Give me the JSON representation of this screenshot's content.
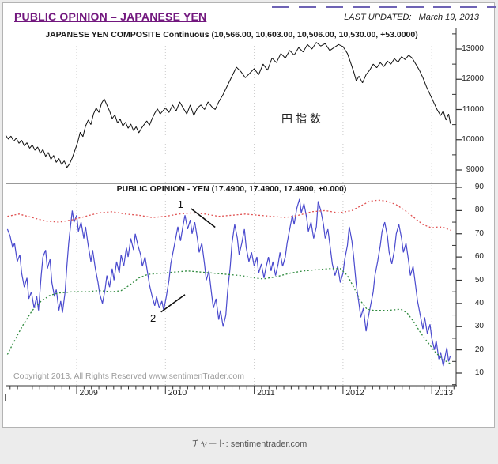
{
  "page": {
    "background": "#ececec",
    "caption": "チャート: sentimentrader.com"
  },
  "header": {
    "title": "PUBLIC OPINION – JAPANESE YEN",
    "title_color": "#72177e",
    "last_updated_label": "LAST UPDATED:",
    "last_updated_value": "March 19, 2013"
  },
  "footer": {
    "copyright": "Copyright 2013, All Rights Reserved  www.sentimenTrader.com"
  },
  "chart_data": [
    {
      "type": "line",
      "title": "JAPANESE YEN COMPOSITE Continuous (10,566.00, 10,603.00, 10,506.00, 10,530.00, +53.0000)",
      "annotation_label": "円指数",
      "xlabel": "",
      "ylabel": "",
      "ylim": [
        8800,
        13400
      ],
      "xlim": [
        2008.2,
        2013.25
      ],
      "yticks": [
        13000,
        12000,
        11000,
        10000,
        9000
      ],
      "yticks_minor": [
        13500,
        12500,
        11500,
        10500,
        9500
      ],
      "grid": "vertical-dotted-years",
      "legend": "none",
      "series": [
        {
          "name": "yen-composite-price",
          "color": "#111111",
          "style": "solid",
          "x": [
            2008.2,
            2008.23,
            2008.26,
            2008.29,
            2008.32,
            2008.35,
            2008.38,
            2008.41,
            2008.44,
            2008.47,
            2008.5,
            2008.53,
            2008.56,
            2008.59,
            2008.62,
            2008.65,
            2008.68,
            2008.71,
            2008.74,
            2008.77,
            2008.8,
            2008.83,
            2008.86,
            2008.89,
            2008.92,
            2008.95,
            2008.98,
            2009.01,
            2009.04,
            2009.07,
            2009.1,
            2009.13,
            2009.16,
            2009.19,
            2009.22,
            2009.25,
            2009.28,
            2009.31,
            2009.34,
            2009.37,
            2009.4,
            2009.43,
            2009.46,
            2009.49,
            2009.52,
            2009.55,
            2009.58,
            2009.61,
            2009.64,
            2009.67,
            2009.7,
            2009.73,
            2009.76,
            2009.79,
            2009.82,
            2009.85,
            2009.88,
            2009.91,
            2009.94,
            2009.97,
            2010.0,
            2010.04,
            2010.08,
            2010.12,
            2010.16,
            2010.2,
            2010.24,
            2010.28,
            2010.32,
            2010.36,
            2010.4,
            2010.44,
            2010.48,
            2010.52,
            2010.56,
            2010.6,
            2010.65,
            2010.7,
            2010.75,
            2010.8,
            2010.85,
            2010.9,
            2010.95,
            2011.0,
            2011.05,
            2011.1,
            2011.15,
            2011.2,
            2011.25,
            2011.3,
            2011.35,
            2011.4,
            2011.45,
            2011.5,
            2011.55,
            2011.6,
            2011.65,
            2011.7,
            2011.75,
            2011.8,
            2011.85,
            2011.9,
            2011.95,
            2012.0,
            2012.05,
            2012.08,
            2012.12,
            2012.15,
            2012.18,
            2012.22,
            2012.26,
            2012.3,
            2012.34,
            2012.38,
            2012.42,
            2012.46,
            2012.5,
            2012.54,
            2012.58,
            2012.62,
            2012.66,
            2012.7,
            2012.74,
            2012.78,
            2012.82,
            2012.86,
            2012.9,
            2012.94,
            2012.98,
            2013.02,
            2013.06,
            2013.1,
            2013.13,
            2013.16,
            2013.19,
            2013.21
          ],
          "y": [
            10150,
            10020,
            10120,
            9950,
            10050,
            9880,
            9980,
            9800,
            9900,
            9720,
            9830,
            9650,
            9760,
            9550,
            9680,
            9450,
            9580,
            9350,
            9480,
            9250,
            9380,
            9180,
            9300,
            9080,
            9200,
            9400,
            9650,
            9900,
            10250,
            10100,
            10450,
            10650,
            10500,
            10850,
            11050,
            10900,
            11200,
            11350,
            11150,
            10950,
            10700,
            10820,
            10550,
            10680,
            10450,
            10580,
            10380,
            10520,
            10300,
            10430,
            10230,
            10380,
            10500,
            10620,
            10480,
            10700,
            10880,
            11020,
            10850,
            10950,
            11050,
            10900,
            11150,
            10950,
            11250,
            11050,
            10850,
            11150,
            10800,
            11050,
            11150,
            11000,
            11250,
            11100,
            11000,
            11250,
            11500,
            11800,
            12100,
            12400,
            12250,
            12050,
            12200,
            12350,
            12150,
            12500,
            12300,
            12700,
            12550,
            12850,
            12700,
            12950,
            12800,
            13050,
            12900,
            13150,
            13000,
            13220,
            13100,
            13180,
            12950,
            13050,
            13150,
            13080,
            12850,
            12600,
            12250,
            11950,
            12100,
            11880,
            12150,
            12300,
            12500,
            12380,
            12550,
            12420,
            12600,
            12500,
            12680,
            12560,
            12750,
            12650,
            12800,
            12700,
            12500,
            12300,
            12050,
            11750,
            11500,
            11250,
            11000,
            10800,
            10950,
            10650,
            10850,
            10530
          ]
        }
      ]
    },
    {
      "type": "line",
      "title": "PUBLIC OPINION - YEN (17.4900, 17.4900, 17.4900, +0.000)",
      "xlabel": "",
      "ylabel": "",
      "ylim": [
        5,
        92
      ],
      "xlim": [
        2008.2,
        2013.25
      ],
      "yticks": [
        90,
        80,
        70,
        60,
        50,
        40,
        30,
        20,
        10
      ],
      "yticks_minor": [
        85,
        75,
        65,
        55,
        45,
        35,
        25,
        15,
        5
      ],
      "grid": "vertical-dotted-years",
      "legend": "none",
      "xticks": {
        "years": [
          2009,
          2010,
          2011,
          2012,
          2013
        ],
        "labels": [
          "2009",
          "2010",
          "2011",
          "2012",
          "2013"
        ]
      },
      "series": [
        {
          "name": "public-opinion-yen",
          "color": "#4a4ace",
          "style": "solid",
          "x": [
            2008.22,
            2008.25,
            2008.28,
            2008.3,
            2008.33,
            2008.36,
            2008.38,
            2008.41,
            2008.44,
            2008.46,
            2008.49,
            2008.52,
            2008.55,
            2008.57,
            2008.6,
            2008.62,
            2008.65,
            2008.67,
            2008.7,
            2008.72,
            2008.75,
            2008.77,
            2008.8,
            2008.82,
            2008.84,
            2008.87,
            2008.89,
            2008.91,
            2008.93,
            2008.95,
            2008.97,
            2009.0,
            2009.02,
            2009.05,
            2009.08,
            2009.1,
            2009.13,
            2009.16,
            2009.18,
            2009.21,
            2009.24,
            2009.26,
            2009.29,
            2009.32,
            2009.34,
            2009.37,
            2009.4,
            2009.42,
            2009.45,
            2009.48,
            2009.5,
            2009.53,
            2009.56,
            2009.58,
            2009.61,
            2009.64,
            2009.66,
            2009.69,
            2009.72,
            2009.74,
            2009.77,
            2009.8,
            2009.82,
            2009.85,
            2009.88,
            2009.9,
            2009.93,
            2009.96,
            2009.98,
            2010.01,
            2010.04,
            2010.06,
            2010.09,
            2010.12,
            2010.14,
            2010.17,
            2010.2,
            2010.22,
            2010.25,
            2010.28,
            2010.3,
            2010.33,
            2010.36,
            2010.38,
            2010.41,
            2010.44,
            2010.46,
            2010.49,
            2010.52,
            2010.54,
            2010.57,
            2010.6,
            2010.62,
            2010.65,
            2010.68,
            2010.7,
            2010.73,
            2010.75,
            2010.78,
            2010.81,
            2010.83,
            2010.86,
            2010.89,
            2010.91,
            2010.94,
            2010.97,
            2011.0,
            2011.03,
            2011.05,
            2011.08,
            2011.11,
            2011.13,
            2011.16,
            2011.19,
            2011.21,
            2011.24,
            2011.27,
            2011.29,
            2011.32,
            2011.35,
            2011.37,
            2011.4,
            2011.43,
            2011.45,
            2011.48,
            2011.51,
            2011.53,
            2011.56,
            2011.59,
            2011.61,
            2011.64,
            2011.67,
            2011.7,
            2011.72,
            2011.75,
            2011.78,
            2011.8,
            2011.83,
            2011.86,
            2011.88,
            2011.91,
            2011.94,
            2011.97,
            2012.0,
            2012.02,
            2012.05,
            2012.07,
            2012.1,
            2012.12,
            2012.15,
            2012.18,
            2012.2,
            2012.23,
            2012.26,
            2012.28,
            2012.31,
            2012.34,
            2012.36,
            2012.39,
            2012.42,
            2012.44,
            2012.47,
            2012.5,
            2012.52,
            2012.55,
            2012.58,
            2012.6,
            2012.63,
            2012.66,
            2012.68,
            2012.71,
            2012.74,
            2012.76,
            2012.79,
            2012.82,
            2012.84,
            2012.87,
            2012.9,
            2012.92,
            2012.95,
            2012.98,
            2013.0,
            2013.03,
            2013.05,
            2013.08,
            2013.1,
            2013.13,
            2013.15,
            2013.17,
            2013.19,
            2013.21
          ],
          "y": [
            72,
            69,
            64,
            66,
            58,
            61,
            53,
            47,
            51,
            42,
            45,
            38,
            43,
            37,
            52,
            60,
            63,
            55,
            59,
            49,
            43,
            46,
            37,
            41,
            36,
            45,
            56,
            66,
            73,
            80,
            75,
            78,
            71,
            75,
            68,
            73,
            65,
            58,
            63,
            55,
            49,
            44,
            40,
            46,
            52,
            47,
            55,
            50,
            58,
            53,
            61,
            56,
            64,
            60,
            68,
            63,
            70,
            65,
            61,
            56,
            60,
            53,
            48,
            43,
            39,
            43,
            38,
            41,
            37,
            43,
            50,
            57,
            63,
            69,
            73,
            67,
            74,
            78,
            72,
            76,
            70,
            75,
            68,
            62,
            66,
            57,
            50,
            54,
            44,
            38,
            42,
            33,
            37,
            30,
            35,
            45,
            56,
            66,
            74,
            68,
            61,
            66,
            72,
            64,
            58,
            62,
            56,
            60,
            53,
            57,
            51,
            55,
            60,
            54,
            58,
            52,
            57,
            62,
            56,
            60,
            66,
            72,
            78,
            74,
            81,
            85,
            79,
            83,
            77,
            71,
            75,
            68,
            73,
            84,
            80,
            74,
            68,
            72,
            63,
            57,
            52,
            56,
            49,
            53,
            59,
            65,
            73,
            67,
            60,
            48,
            40,
            34,
            38,
            28,
            33,
            39,
            45,
            52,
            58,
            65,
            71,
            75,
            69,
            62,
            57,
            63,
            70,
            74,
            68,
            62,
            66,
            58,
            52,
            56,
            47,
            41,
            35,
            29,
            34,
            27,
            31,
            25,
            20,
            24,
            16,
            19,
            13,
            17,
            21,
            15,
            17.5
          ]
        },
        {
          "name": "upper-band-excessive-optimism",
          "color": "#e05252",
          "style": "dotted",
          "x": [
            2008.22,
            2008.35,
            2008.5,
            2008.65,
            2008.8,
            2008.95,
            2009.1,
            2009.25,
            2009.4,
            2009.55,
            2009.7,
            2009.85,
            2010.0,
            2010.15,
            2010.3,
            2010.45,
            2010.6,
            2010.75,
            2010.9,
            2011.05,
            2011.2,
            2011.35,
            2011.5,
            2011.65,
            2011.8,
            2011.95,
            2012.1,
            2012.2,
            2012.3,
            2012.4,
            2012.5,
            2012.6,
            2012.7,
            2012.8,
            2012.9,
            2013.0,
            2013.08,
            2013.15,
            2013.21
          ],
          "y": [
            77.5,
            78.5,
            77,
            75.5,
            75,
            76,
            77.5,
            79,
            79.5,
            78.5,
            78,
            77,
            77.5,
            78.5,
            79,
            78.5,
            77.5,
            78,
            78.5,
            78,
            77.5,
            77,
            78,
            79.5,
            80,
            79,
            80,
            82,
            84,
            84.5,
            84,
            82.5,
            80,
            77,
            74,
            72.5,
            73,
            72.5,
            71.5
          ]
        },
        {
          "name": "lower-band-excessive-pessimism",
          "color": "#2f8a3e",
          "style": "dotted",
          "x": [
            2008.22,
            2008.3,
            2008.4,
            2008.5,
            2008.6,
            2008.7,
            2008.8,
            2008.95,
            2009.1,
            2009.25,
            2009.4,
            2009.5,
            2009.6,
            2009.7,
            2009.8,
            2009.95,
            2010.1,
            2010.25,
            2010.4,
            2010.55,
            2010.7,
            2010.85,
            2011.0,
            2011.1,
            2011.25,
            2011.4,
            2011.55,
            2011.7,
            2011.85,
            2011.97,
            2012.05,
            2012.12,
            2012.2,
            2012.27,
            2012.35,
            2012.5,
            2012.65,
            2012.72,
            2012.8,
            2012.88,
            2012.96,
            2013.04,
            2013.12,
            2013.21
          ],
          "y": [
            18,
            24,
            31,
            37,
            41,
            43.5,
            44.5,
            45,
            45,
            45.5,
            45,
            45.5,
            48,
            51,
            52.5,
            53,
            53.5,
            54,
            53.5,
            53,
            52.5,
            52,
            51,
            50.5,
            51.5,
            53,
            54,
            54.5,
            55,
            55,
            52,
            47,
            41,
            37.5,
            37,
            37,
            37.5,
            36,
            32,
            27,
            23,
            19,
            16,
            14
          ]
        }
      ],
      "annotations": [
        {
          "label": "1",
          "label_pos": {
            "x": 2010.17,
            "y": 82.5
          },
          "line": {
            "x1": 2010.29,
            "y1": 80.8,
            "x2": 2010.56,
            "y2": 72.8
          }
        },
        {
          "label": "2",
          "label_pos": {
            "x": 2009.86,
            "y": 33.5
          },
          "line": {
            "x1": 2009.95,
            "y1": 36.3,
            "x2": 2010.22,
            "y2": 43.8
          }
        }
      ]
    }
  ]
}
